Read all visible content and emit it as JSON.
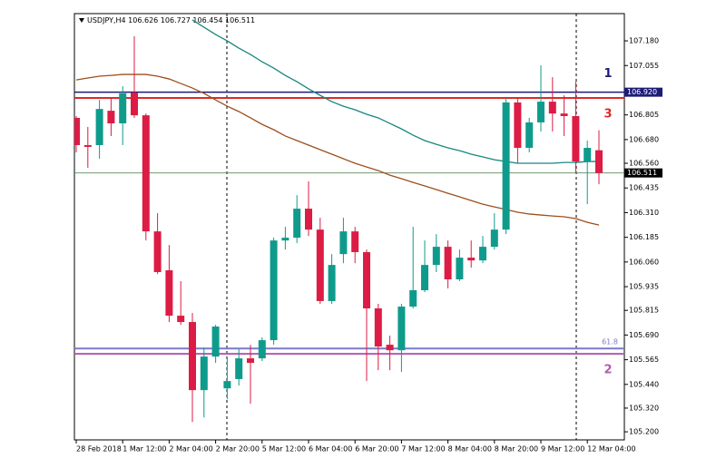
{
  "chart_data": {
    "type": "candlestick",
    "title": "USDJPY,H4 106.626 106.727 106.454 106.511",
    "categories": [
      "28 Feb 2018",
      null,
      null,
      null,
      "1 Mar 12:00",
      null,
      null,
      null,
      "2 Mar 04:00",
      null,
      null,
      null,
      "2 Mar 20:00",
      null,
      null,
      null,
      "5 Mar 12:00",
      null,
      null,
      null,
      "6 Mar 04:00",
      null,
      null,
      null,
      "6 Mar 20:00",
      null,
      null,
      null,
      "7 Mar 12:00",
      null,
      null,
      null,
      "8 Mar 04:00",
      null,
      null,
      null,
      "8 Mar 20:00",
      null,
      null,
      null,
      "9 Mar 12:00",
      null,
      null,
      null,
      "12 Mar 04:00",
      null
    ],
    "open": [
      106.79,
      106.652,
      106.652,
      106.826,
      106.762,
      106.918,
      106.803,
      106.215,
      106.018,
      105.788,
      105.756,
      105.411,
      105.581,
      105.42,
      105.467,
      105.572,
      105.572,
      105.664,
      106.169,
      106.183,
      106.33,
      106.224,
      105.862,
      106.1,
      106.215,
      106.11,
      105.825,
      105.641,
      105.613,
      105.834,
      105.917,
      106.045,
      106.137,
      105.972,
      106.082,
      106.068,
      106.137,
      106.224,
      106.868,
      106.638,
      106.767,
      106.872,
      106.812,
      106.799,
      106.569,
      106.626
    ],
    "high": [
      106.799,
      106.744,
      106.881,
      106.891,
      106.95,
      107.203,
      106.812,
      106.307,
      106.146,
      105.963,
      105.802,
      105.627,
      105.742,
      105.572,
      105.618,
      105.641,
      105.678,
      106.183,
      106.238,
      106.399,
      106.468,
      106.284,
      106.1,
      106.284,
      106.238,
      106.123,
      105.848,
      105.687,
      105.848,
      106.238,
      106.169,
      106.201,
      106.169,
      106.123,
      106.169,
      106.192,
      106.307,
      106.891,
      106.891,
      106.79,
      107.056,
      106.996,
      106.904,
      106.973,
      106.675,
      106.727
    ],
    "low": [
      106.615,
      106.537,
      106.583,
      106.698,
      106.652,
      106.79,
      106.169,
      105.999,
      105.756,
      105.742,
      105.25,
      105.273,
      105.549,
      105.365,
      105.434,
      105.342,
      105.558,
      105.641,
      106.123,
      106.156,
      106.192,
      105.848,
      105.848,
      106.054,
      106.054,
      105.457,
      105.512,
      105.512,
      105.503,
      105.825,
      105.907,
      106.009,
      105.926,
      105.963,
      106.031,
      106.054,
      106.123,
      106.201,
      106.56,
      106.615,
      106.721,
      106.721,
      106.698,
      106.514,
      106.353,
      106.454
    ],
    "close": [
      106.652,
      106.643,
      106.835,
      106.762,
      106.914,
      106.803,
      106.215,
      106.009,
      105.788,
      105.756,
      105.411,
      105.581,
      105.733,
      105.457,
      105.572,
      105.549,
      105.664,
      106.169,
      106.183,
      106.33,
      106.224,
      105.862,
      106.045,
      106.215,
      106.11,
      105.825,
      105.632,
      105.613,
      105.834,
      105.917,
      106.045,
      106.137,
      105.972,
      106.082,
      106.068,
      106.137,
      106.224,
      106.868,
      106.638,
      106.767,
      106.872,
      106.812,
      106.799,
      106.569,
      106.638,
      106.511
    ],
    "up_color": "#0f9b8c",
    "down_color": "#dc1c44",
    "lines": [
      {
        "color": "#17877d",
        "values": [
          null,
          null,
          null,
          null,
          null,
          null,
          null,
          null,
          null,
          null,
          107.286,
          107.249,
          107.212,
          107.18,
          107.143,
          107.111,
          107.074,
          107.042,
          107.005,
          106.973,
          106.937,
          106.904,
          106.872,
          106.849,
          106.831,
          106.808,
          106.79,
          106.762,
          106.734,
          106.702,
          106.675,
          106.656,
          106.638,
          106.624,
          106.606,
          106.592,
          106.578,
          106.569,
          106.56,
          106.56,
          106.56,
          106.56,
          106.564,
          106.564,
          106.569,
          106.569
        ]
      },
      {
        "color": "#9c4f1e",
        "values": [
          106.982,
          106.992,
          107.001,
          107.005,
          107.01,
          107.01,
          107.01,
          107.001,
          106.987,
          106.964,
          106.941,
          106.914,
          106.881,
          106.849,
          106.822,
          106.79,
          106.757,
          106.73,
          106.698,
          106.675,
          106.652,
          106.629,
          106.606,
          106.583,
          106.56,
          106.541,
          106.523,
          106.5,
          106.482,
          106.463,
          106.445,
          106.427,
          106.408,
          106.39,
          106.371,
          106.353,
          106.339,
          106.326,
          106.312,
          106.303,
          106.298,
          106.293,
          106.289,
          106.28,
          106.261,
          106.247
        ]
      }
    ],
    "levels": [
      {
        "value": 106.92,
        "label": "106.920",
        "note": "1",
        "color": "#1c1c78"
      },
      {
        "value": 106.891,
        "note": "3",
        "color": "#dc2a2a"
      },
      {
        "value": 105.622,
        "note": "61.8",
        "color": "#7a7acc"
      },
      {
        "value": 105.595,
        "note": "2",
        "color": "#b05cb0"
      }
    ],
    "current_price": {
      "value": 106.511,
      "label": "106.511"
    },
    "ylim": [
      105.159,
      107.318
    ],
    "yticks": [
      {
        "value": 107.18,
        "label": "107.180"
      },
      {
        "value": 107.055,
        "label": "107.055"
      },
      {
        "value": 106.805,
        "label": "106.805"
      },
      {
        "value": 106.68,
        "label": "106.680"
      },
      {
        "value": 106.56,
        "label": "106.560"
      },
      {
        "value": 106.435,
        "label": "106.435"
      },
      {
        "value": 106.31,
        "label": "106.310"
      },
      {
        "value": 106.185,
        "label": "106.185"
      },
      {
        "value": 106.06,
        "label": "106.060"
      },
      {
        "value": 105.935,
        "label": "105.935"
      },
      {
        "value": 105.815,
        "label": "105.815"
      },
      {
        "value": 105.69,
        "label": "105.690"
      },
      {
        "value": 105.565,
        "label": "105.565"
      },
      {
        "value": 105.44,
        "label": "105.440"
      },
      {
        "value": 105.32,
        "label": "105.320"
      },
      {
        "value": 105.2,
        "label": "105.200"
      }
    ]
  }
}
